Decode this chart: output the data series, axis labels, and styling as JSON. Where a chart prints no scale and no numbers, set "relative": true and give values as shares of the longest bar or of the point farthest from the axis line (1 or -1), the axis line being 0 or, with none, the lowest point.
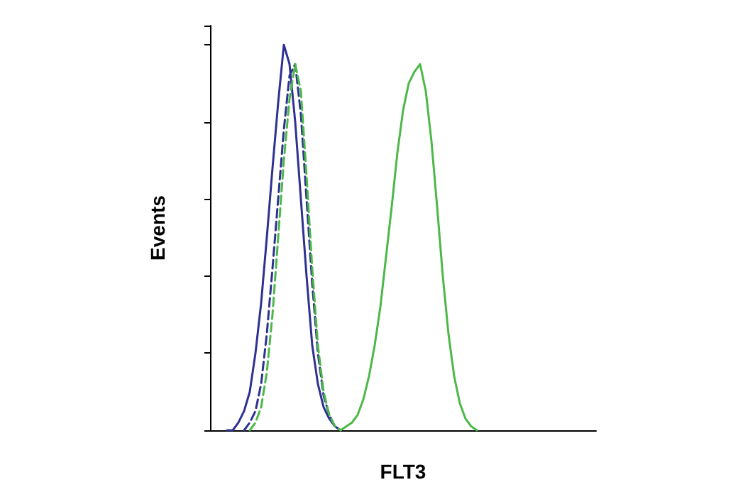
{
  "chart_data": {
    "type": "line",
    "relative": true,
    "xlabel": "FLT3",
    "ylabel": "Events",
    "grid": false,
    "categories": [
      null,
      null,
      null,
      null,
      null,
      null,
      null,
      null,
      null,
      null,
      null,
      null,
      null,
      null,
      null,
      null,
      null,
      null,
      null,
      null,
      null,
      null,
      null,
      null,
      null,
      null,
      null,
      null,
      null,
      null,
      null,
      null,
      null,
      null,
      null,
      null,
      null,
      null,
      null,
      null,
      null,
      null,
      null,
      null,
      null,
      null,
      null,
      null,
      null,
      null,
      null,
      null,
      null,
      null,
      null,
      null,
      null,
      null,
      null,
      null,
      null,
      null,
      null,
      null,
      null,
      null,
      null,
      null,
      null
    ],
    "series": [
      {
        "color": "#2e3192",
        "line_style": "solid",
        "values": [
          null,
          null,
          null,
          0,
          0,
          0.02,
          0.05,
          0.1,
          0.2,
          0.33,
          0.5,
          0.68,
          0.85,
          1,
          0.95,
          0.8,
          0.6,
          0.4,
          0.22,
          0.12,
          0.06,
          0.03,
          0.01,
          0,
          null,
          null,
          null,
          null,
          null,
          null,
          null,
          null,
          null,
          null,
          null,
          null,
          null,
          null,
          null,
          null,
          null,
          null,
          null,
          null,
          null,
          null,
          null,
          null,
          null,
          null,
          null,
          null,
          null,
          null,
          null,
          null,
          null,
          null,
          null,
          null,
          null,
          null,
          null,
          null,
          null,
          null,
          null,
          null,
          null
        ]
      },
      {
        "color": "#2e3192",
        "line_style": "dashed",
        "values": [
          null,
          null,
          null,
          null,
          null,
          null,
          0,
          0.02,
          0.05,
          0.12,
          0.25,
          0.42,
          0.6,
          0.78,
          0.92,
          0.95,
          0.82,
          0.6,
          0.38,
          0.2,
          0.09,
          0.04,
          0.01,
          0,
          null,
          null,
          null,
          null,
          null,
          null,
          null,
          null,
          null,
          null,
          null,
          null,
          null,
          null,
          null,
          null,
          null,
          null,
          null,
          null,
          null,
          null,
          null,
          null,
          null,
          null,
          null,
          null,
          null,
          null,
          null,
          null,
          null,
          null,
          null,
          null,
          null,
          null,
          null,
          null,
          null,
          null,
          null,
          null,
          null
        ]
      },
      {
        "color": "#4cb848",
        "line_style": "dashed",
        "values": [
          null,
          null,
          null,
          null,
          null,
          null,
          null,
          0,
          0.02,
          0.06,
          0.15,
          0.3,
          0.5,
          0.7,
          0.86,
          0.95,
          0.88,
          0.66,
          0.42,
          0.22,
          0.1,
          0.04,
          0.01,
          0,
          null,
          null,
          null,
          null,
          null,
          null,
          null,
          null,
          null,
          null,
          null,
          null,
          null,
          null,
          null,
          null,
          null,
          null,
          null,
          null,
          null,
          null,
          null,
          null,
          null,
          null,
          null,
          null,
          null,
          null,
          null,
          null,
          null,
          null,
          null,
          null,
          null,
          null,
          null,
          null,
          null,
          null,
          null,
          null,
          null
        ]
      },
      {
        "color": "#4cb848",
        "line_style": "solid",
        "values": [
          null,
          null,
          null,
          null,
          null,
          null,
          null,
          null,
          null,
          null,
          null,
          null,
          null,
          null,
          null,
          null,
          null,
          null,
          null,
          null,
          null,
          null,
          null,
          0,
          0.01,
          0.02,
          0.04,
          0.08,
          0.14,
          0.22,
          0.32,
          0.45,
          0.58,
          0.72,
          0.83,
          0.9,
          0.93,
          0.95,
          0.88,
          0.75,
          0.58,
          0.4,
          0.25,
          0.14,
          0.07,
          0.03,
          0.01,
          0,
          null,
          null,
          null,
          null,
          null,
          null,
          null,
          null,
          null,
          null,
          null,
          null,
          null,
          null,
          null,
          null,
          null,
          null,
          null,
          null,
          null
        ]
      }
    ]
  }
}
